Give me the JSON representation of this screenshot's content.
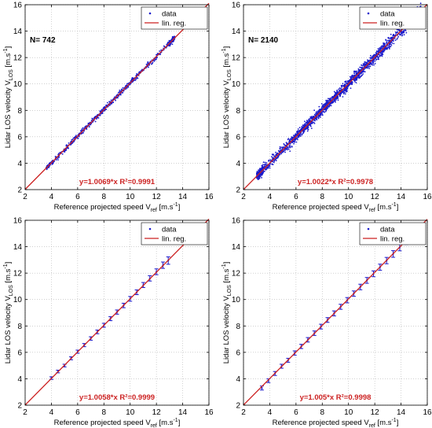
{
  "colors": {
    "data": "#1a1acc",
    "fit": "#cc2222",
    "grid": "#b4b4b4",
    "axis": "#000000"
  },
  "chart_data": [
    {
      "type": "scatter",
      "grid": true,
      "legend_position": "top-right",
      "legend": [
        "data",
        "lin. reg."
      ],
      "xlabel": "Reference projected speed V_ref [m.s^-1]",
      "ylabel": "Lidar LOS velocity V_LOS [m.s^-1]",
      "xlim": [
        2,
        16
      ],
      "ylim": [
        2,
        16
      ],
      "xticks": [
        "2",
        "4",
        "6",
        "8",
        "10",
        "12",
        "14",
        "16"
      ],
      "yticks": [
        "2",
        "4",
        "6",
        "8",
        "10",
        "12",
        "14",
        "16"
      ],
      "annotation": "N= 742",
      "equation": "y=1.0069*x  R²=0.9991",
      "fit": {
        "slope": 1.0069,
        "r2": 0.9991
      },
      "x_range": [
        3.6,
        13.4
      ],
      "n_points": 742
    },
    {
      "type": "scatter",
      "grid": true,
      "legend_position": "top-right",
      "legend": [
        "data",
        "lin. reg."
      ],
      "xlabel": "Reference projected speed V_ref [m.s^-1]",
      "ylabel": "Lidar LOS velocity V_LOS [m.s^-1]",
      "xlim": [
        2,
        16
      ],
      "ylim": [
        2,
        16
      ],
      "xticks": [
        "2",
        "4",
        "6",
        "8",
        "10",
        "12",
        "14",
        "16"
      ],
      "yticks": [
        "2",
        "4",
        "6",
        "8",
        "10",
        "12",
        "14",
        "16"
      ],
      "annotation": "N= 2140",
      "equation": "y=1.0022*x  R²=0.9978",
      "fit": {
        "slope": 1.0022,
        "r2": 0.9978
      },
      "x_range": [
        3.0,
        15.5
      ],
      "n_points": 2140
    },
    {
      "type": "scatter",
      "grid": true,
      "legend_position": "top-right",
      "legend": [
        "data",
        "lin. reg."
      ],
      "xlabel": "Reference projected speed V_ref [m.s^-1]",
      "ylabel": "Lidar LOS velocity V_LOS [m.s^-1]",
      "xlim": [
        2,
        16
      ],
      "ylim": [
        2,
        16
      ],
      "xticks": [
        "2",
        "4",
        "6",
        "8",
        "10",
        "12",
        "14",
        "16"
      ],
      "yticks": [
        "2",
        "4",
        "6",
        "8",
        "10",
        "12",
        "14",
        "16"
      ],
      "annotation": "",
      "equation": "y=1.0058*x  R²=0.9999",
      "fit": {
        "slope": 1.0058,
        "r2": 0.9999
      },
      "points": [
        {
          "x": 4.0,
          "y": 4.05,
          "err": 0.1
        },
        {
          "x": 4.5,
          "y": 4.55,
          "err": 0.1
        },
        {
          "x": 5.0,
          "y": 5.0,
          "err": 0.1
        },
        {
          "x": 5.5,
          "y": 5.55,
          "err": 0.11
        },
        {
          "x": 6.0,
          "y": 6.05,
          "err": 0.12
        },
        {
          "x": 6.5,
          "y": 6.55,
          "err": 0.12
        },
        {
          "x": 7.0,
          "y": 7.05,
          "err": 0.13
        },
        {
          "x": 7.5,
          "y": 7.55,
          "err": 0.14
        },
        {
          "x": 8.0,
          "y": 8.05,
          "err": 0.15
        },
        {
          "x": 8.5,
          "y": 8.55,
          "err": 0.15
        },
        {
          "x": 9.0,
          "y": 9.05,
          "err": 0.16
        },
        {
          "x": 9.5,
          "y": 9.55,
          "err": 0.17
        },
        {
          "x": 10.0,
          "y": 10.05,
          "err": 0.18
        },
        {
          "x": 10.5,
          "y": 10.55,
          "err": 0.18
        },
        {
          "x": 11.0,
          "y": 11.1,
          "err": 0.19
        },
        {
          "x": 11.5,
          "y": 11.6,
          "err": 0.2
        },
        {
          "x": 12.0,
          "y": 12.1,
          "err": 0.22
        },
        {
          "x": 12.5,
          "y": 12.6,
          "err": 0.24
        },
        {
          "x": 12.9,
          "y": 12.95,
          "err": 0.28
        }
      ]
    },
    {
      "type": "scatter",
      "grid": true,
      "legend_position": "top-right",
      "legend": [
        "data",
        "lin. reg."
      ],
      "xlabel": "Reference projected speed V_ref [m.s^-1]",
      "ylabel": "Lidar LOS velocity V_LOS [m.s^-1]",
      "xlim": [
        2,
        16
      ],
      "ylim": [
        2,
        16
      ],
      "xticks": [
        "2",
        "4",
        "6",
        "8",
        "10",
        "12",
        "14",
        "16"
      ],
      "yticks": [
        "2",
        "4",
        "6",
        "8",
        "10",
        "12",
        "14",
        "16"
      ],
      "annotation": "",
      "equation": "y=1.005*x  R²=0.9998",
      "fit": {
        "slope": 1.005,
        "r2": 0.9998
      },
      "points": [
        {
          "x": 3.4,
          "y": 3.3,
          "err": 0.15
        },
        {
          "x": 3.9,
          "y": 3.85,
          "err": 0.14
        },
        {
          "x": 4.4,
          "y": 4.4,
          "err": 0.15
        },
        {
          "x": 4.9,
          "y": 4.95,
          "err": 0.15
        },
        {
          "x": 5.4,
          "y": 5.4,
          "err": 0.15
        },
        {
          "x": 5.9,
          "y": 5.95,
          "err": 0.16
        },
        {
          "x": 6.4,
          "y": 6.45,
          "err": 0.16
        },
        {
          "x": 6.9,
          "y": 6.95,
          "err": 0.17
        },
        {
          "x": 7.4,
          "y": 7.45,
          "err": 0.17
        },
        {
          "x": 7.9,
          "y": 7.95,
          "err": 0.18
        },
        {
          "x": 8.4,
          "y": 8.45,
          "err": 0.18
        },
        {
          "x": 8.9,
          "y": 8.95,
          "err": 0.19
        },
        {
          "x": 9.4,
          "y": 9.45,
          "err": 0.19
        },
        {
          "x": 9.9,
          "y": 9.95,
          "err": 0.2
        },
        {
          "x": 10.4,
          "y": 10.45,
          "err": 0.2
        },
        {
          "x": 10.9,
          "y": 10.95,
          "err": 0.21
        },
        {
          "x": 11.4,
          "y": 11.45,
          "err": 0.22
        },
        {
          "x": 11.9,
          "y": 11.95,
          "err": 0.22
        },
        {
          "x": 12.4,
          "y": 12.45,
          "err": 0.23
        },
        {
          "x": 12.9,
          "y": 12.95,
          "err": 0.24
        },
        {
          "x": 13.4,
          "y": 13.45,
          "err": 0.25
        },
        {
          "x": 13.9,
          "y": 13.95,
          "err": 0.26
        },
        {
          "x": 14.4,
          "y": 14.45,
          "err": 0.28
        },
        {
          "x": 14.9,
          "y": 15.0,
          "err": 0.3
        }
      ]
    }
  ]
}
